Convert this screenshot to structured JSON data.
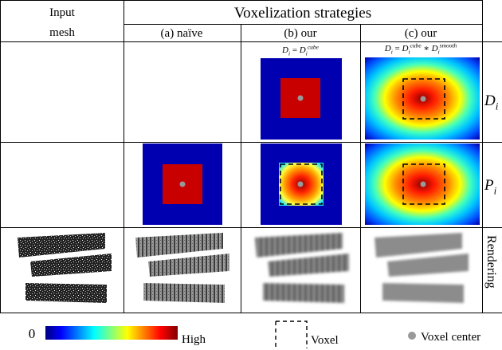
{
  "header": {
    "input_mesh": [
      "Input",
      "mesh"
    ],
    "title": "Voxelization strategies",
    "columns": [
      "(a) naïve",
      "(b) our",
      "(c) our"
    ]
  },
  "formulas": [
    [
      {
        "text": "D",
        "style": "base"
      },
      {
        "text": "i",
        "style": "sub"
      },
      {
        "text": " = ",
        "style": "base"
      },
      {
        "text": "D",
        "style": "base"
      },
      {
        "text": "i",
        "style": "sub"
      },
      {
        "text": "cube",
        "style": "sup"
      }
    ],
    [
      {
        "text": "D",
        "style": "base"
      },
      {
        "text": "i",
        "style": "sub"
      },
      {
        "text": " = ",
        "style": "base"
      },
      {
        "text": "D",
        "style": "base"
      },
      {
        "text": "i",
        "style": "sub"
      },
      {
        "text": "cube",
        "style": "sup"
      },
      {
        "text": " ∗ ",
        "style": "base"
      },
      {
        "text": "D",
        "style": "base"
      },
      {
        "text": "i",
        "style": "sub"
      },
      {
        "text": "smooth",
        "style": "sup"
      }
    ]
  ],
  "row_labels": [
    [
      {
        "text": "D",
        "style": "base"
      },
      {
        "text": "i",
        "style": "sub"
      }
    ],
    [
      {
        "text": "P",
        "style": "base"
      },
      {
        "text": "i",
        "style": "sub"
      }
    ],
    [
      {
        "text": "Rendering",
        "style": "base"
      }
    ]
  ],
  "legend": {
    "min": "0",
    "max": "High",
    "voxel": "Voxel",
    "voxel_center": "Voxel center"
  }
}
